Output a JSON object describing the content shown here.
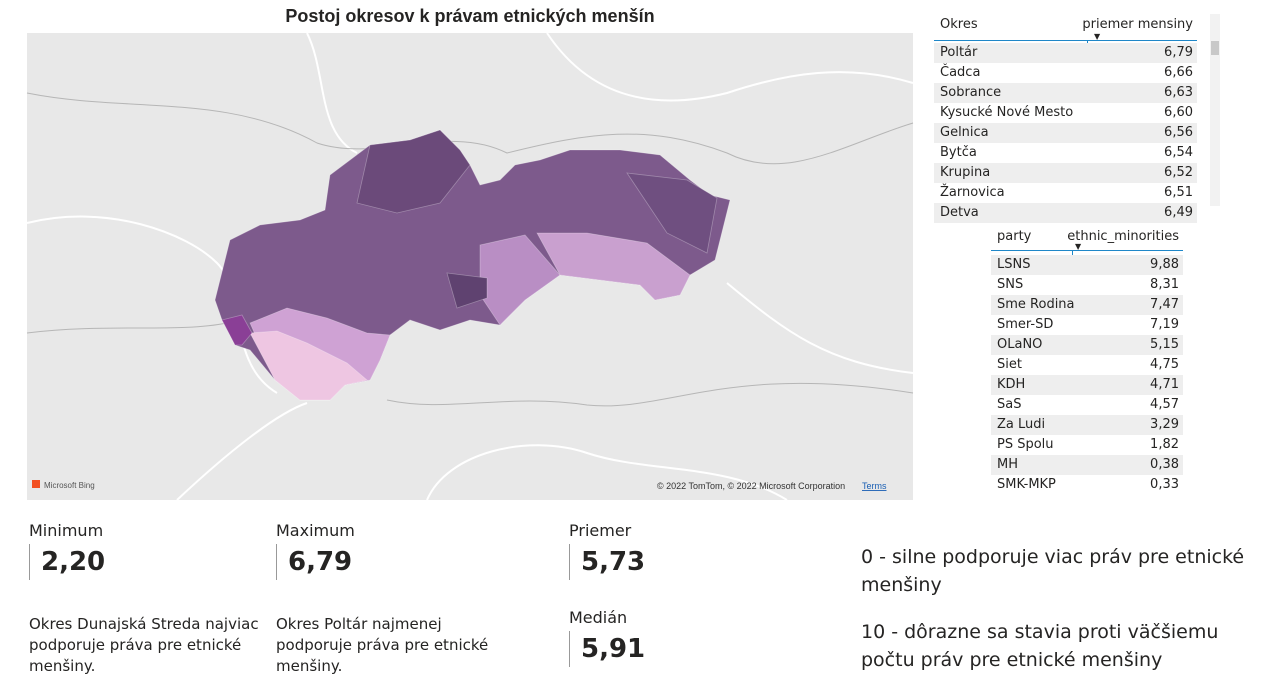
{
  "map": {
    "title": "Postoj okresov k právam etnických menšín",
    "logo": "Microsoft Bing",
    "attribution": "© 2022 TomTom, © 2022 Microsoft Corporation",
    "terms": "Terms"
  },
  "table1": {
    "headers": [
      "Okres",
      "priemer mensiny"
    ],
    "rows": [
      [
        "Poltár",
        "6,79"
      ],
      [
        "Čadca",
        "6,66"
      ],
      [
        "Sobrance",
        "6,63"
      ],
      [
        "Kysucké Nové Mesto",
        "6,60"
      ],
      [
        "Gelnica",
        "6,56"
      ],
      [
        "Bytča",
        "6,54"
      ],
      [
        "Krupina",
        "6,52"
      ],
      [
        "Žarnovica",
        "6,51"
      ],
      [
        "Detva",
        "6,49"
      ]
    ]
  },
  "table2": {
    "headers": [
      "party",
      "ethnic_minorities"
    ],
    "rows": [
      [
        "LSNS",
        "9,88"
      ],
      [
        "SNS",
        "8,31"
      ],
      [
        "Sme Rodina",
        "7,47"
      ],
      [
        "Smer-SD",
        "7,19"
      ],
      [
        "OLaNO",
        "5,15"
      ],
      [
        "Siet",
        "4,75"
      ],
      [
        "KDH",
        "4,71"
      ],
      [
        "SaS",
        "4,57"
      ],
      [
        "Za Ludi",
        "3,29"
      ],
      [
        "PS Spolu",
        "1,82"
      ],
      [
        "MH",
        "0,38"
      ],
      [
        "SMK-MKP",
        "0,33"
      ]
    ]
  },
  "kpis": [
    {
      "label": "Minimum",
      "value": "2,20"
    },
    {
      "label": "Maximum",
      "value": "6,79"
    },
    {
      "label": "Priemer",
      "value": "5,73"
    },
    {
      "label": "Medián",
      "value": "5,91"
    }
  ],
  "descriptions": [
    "Okres Dunajská Streda najviac podporuje práva pre etnické menšiny.",
    "Okres Poltár najmenej podporuje práva pre etnické menšiny."
  ],
  "scale_notes": [
    "0 - silne podporuje viac práv pre etnické menšiny",
    "10 - dôrazne sa stavia proti väčšiemu počtu práv pre etnické menšiny"
  ]
}
